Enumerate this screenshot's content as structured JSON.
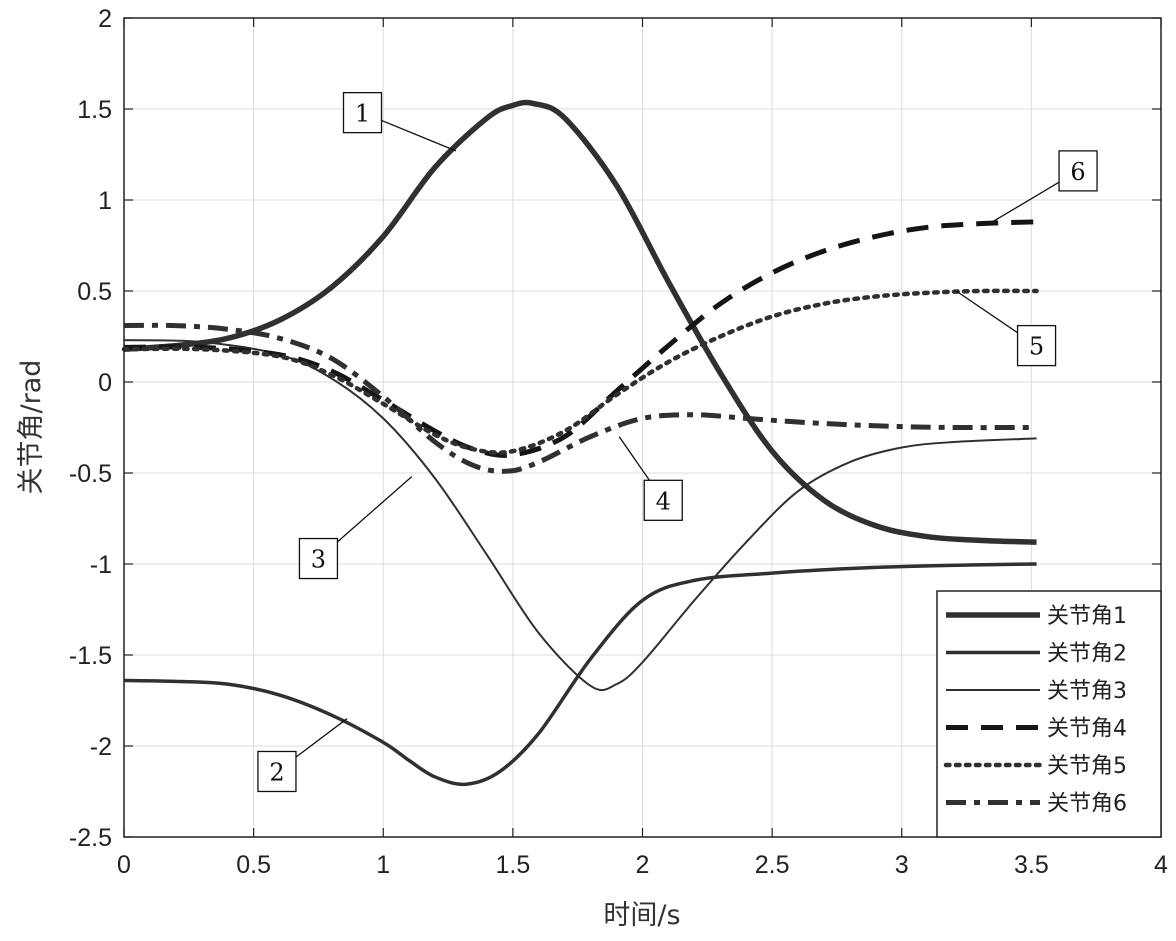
{
  "chart_data": {
    "type": "line",
    "title": "",
    "xlabel": "时间/s",
    "ylabel": "关节角/rad",
    "xlim": [
      0,
      4
    ],
    "ylim": [
      -2.5,
      2
    ],
    "xticks": [
      0,
      0.5,
      1,
      1.5,
      2,
      2.5,
      3,
      3.5,
      4
    ],
    "yticks": [
      -2.5,
      -2,
      -1.5,
      -1,
      -0.5,
      0,
      0.5,
      1,
      1.5,
      2
    ],
    "grid": true,
    "legend_position": "bottom-right",
    "series": [
      {
        "name": "关节角1",
        "style": "solid",
        "width": 5.5,
        "color": "#303030",
        "x": [
          0,
          0.2,
          0.4,
          0.6,
          0.8,
          1.0,
          1.2,
          1.4,
          1.5,
          1.58,
          1.7,
          1.9,
          2.1,
          2.3,
          2.5,
          2.7,
          2.9,
          3.1,
          3.3,
          3.52
        ],
        "y": [
          0.18,
          0.2,
          0.24,
          0.34,
          0.52,
          0.8,
          1.18,
          1.45,
          1.52,
          1.53,
          1.45,
          1.08,
          0.55,
          0.05,
          -0.38,
          -0.65,
          -0.79,
          -0.85,
          -0.87,
          -0.88
        ]
      },
      {
        "name": "关节角2",
        "style": "solid",
        "width": 3.5,
        "color": "#303030",
        "x": [
          0,
          0.2,
          0.4,
          0.6,
          0.8,
          1.0,
          1.1,
          1.2,
          1.32,
          1.45,
          1.6,
          1.8,
          2.0,
          2.2,
          2.5,
          2.8,
          3.1,
          3.52
        ],
        "y": [
          -1.64,
          -1.645,
          -1.66,
          -1.72,
          -1.83,
          -1.98,
          -2.08,
          -2.17,
          -2.21,
          -2.14,
          -1.93,
          -1.52,
          -1.2,
          -1.09,
          -1.05,
          -1.025,
          -1.01,
          -1.0
        ],
        "marker": "2"
      },
      {
        "name": "关节角3",
        "style": "solid",
        "width": 2,
        "color": "#303030",
        "x": [
          0,
          0.3,
          0.6,
          0.8,
          1.0,
          1.2,
          1.4,
          1.6,
          1.8,
          1.9,
          2.0,
          2.2,
          2.4,
          2.6,
          2.8,
          3.0,
          3.2,
          3.52
        ],
        "y": [
          0.23,
          0.22,
          0.15,
          0.02,
          -0.2,
          -0.53,
          -0.95,
          -1.38,
          -1.67,
          -1.66,
          -1.54,
          -1.2,
          -0.88,
          -0.6,
          -0.44,
          -0.36,
          -0.33,
          -0.31
        ]
      },
      {
        "name": "关节角4",
        "style": "dash",
        "width": 5,
        "color": "#151515",
        "x": [
          0,
          0.3,
          0.6,
          0.8,
          1.0,
          1.2,
          1.35,
          1.5,
          1.7,
          1.9,
          2.1,
          2.3,
          2.5,
          2.7,
          2.9,
          3.1,
          3.3,
          3.52
        ],
        "y": [
          0.19,
          0.19,
          0.15,
          0.06,
          -0.1,
          -0.27,
          -0.37,
          -0.4,
          -0.3,
          -0.05,
          0.2,
          0.43,
          0.6,
          0.72,
          0.8,
          0.85,
          0.87,
          0.88
        ]
      },
      {
        "name": "关节角5",
        "style": "dot",
        "width": 4.5,
        "color": "#303030",
        "x": [
          0,
          0.3,
          0.6,
          0.8,
          1.0,
          1.2,
          1.35,
          1.5,
          1.7,
          1.9,
          2.1,
          2.3,
          2.5,
          2.7,
          2.9,
          3.1,
          3.3,
          3.52
        ],
        "y": [
          0.18,
          0.18,
          0.14,
          0.04,
          -0.12,
          -0.29,
          -0.37,
          -0.38,
          -0.27,
          -0.07,
          0.11,
          0.25,
          0.36,
          0.43,
          0.47,
          0.49,
          0.5,
          0.5
        ]
      },
      {
        "name": "关节角6",
        "style": "dashdot",
        "width": 5,
        "color": "#303030",
        "x": [
          0,
          0.2,
          0.4,
          0.6,
          0.8,
          1.0,
          1.2,
          1.35,
          1.48,
          1.6,
          1.8,
          2.0,
          2.2,
          2.4,
          2.6,
          2.8,
          3.0,
          3.2,
          3.52
        ],
        "y": [
          0.31,
          0.31,
          0.29,
          0.24,
          0.13,
          -0.08,
          -0.33,
          -0.46,
          -0.49,
          -0.44,
          -0.3,
          -0.2,
          -0.18,
          -0.2,
          -0.22,
          -0.235,
          -0.245,
          -0.25,
          -0.25
        ]
      }
    ],
    "annotations": [
      {
        "text": "1",
        "box": [
          0.92,
          1.48
        ],
        "point": [
          1.28,
          1.27
        ]
      },
      {
        "text": "2",
        "box": [
          0.59,
          -2.14
        ],
        "point": [
          0.86,
          -1.85
        ]
      },
      {
        "text": "3",
        "box": [
          0.75,
          -0.97
        ],
        "point": [
          1.11,
          -0.52
        ]
      },
      {
        "text": "4",
        "box": [
          2.08,
          -0.65
        ],
        "point": [
          1.91,
          -0.3
        ]
      },
      {
        "text": "5",
        "box": [
          3.52,
          0.2
        ],
        "point": [
          3.21,
          0.5
        ]
      },
      {
        "text": "6",
        "box": [
          3.68,
          1.16
        ],
        "point": [
          3.35,
          0.88
        ]
      }
    ]
  }
}
